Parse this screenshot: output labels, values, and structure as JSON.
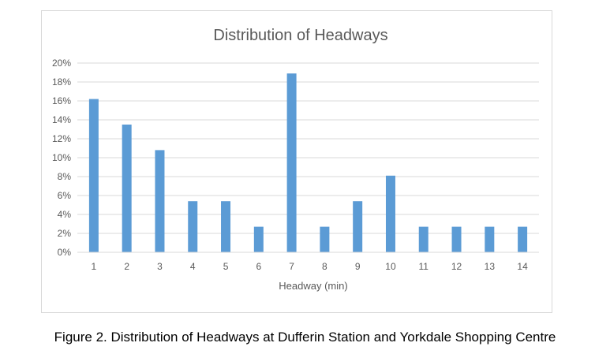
{
  "caption": "Figure 2. Distribution of Headways at Dufferin Station and Yorkdale Shopping Centre",
  "chart_data": {
    "type": "bar",
    "title": "Distribution of Headways",
    "xlabel": "Headway (min)",
    "ylabel": "",
    "categories": [
      "1",
      "2",
      "3",
      "4",
      "5",
      "6",
      "7",
      "8",
      "9",
      "10",
      "11",
      "12",
      "13",
      "14"
    ],
    "values": [
      16.2,
      13.5,
      10.8,
      5.4,
      5.4,
      2.7,
      18.9,
      2.7,
      5.4,
      8.1,
      2.7,
      2.7,
      2.7,
      2.7
    ],
    "ylim": [
      0,
      20
    ],
    "yticks": [
      "0%",
      "2%",
      "4%",
      "6%",
      "8%",
      "10%",
      "12%",
      "14%",
      "16%",
      "18%",
      "20%"
    ],
    "y_unit": "%",
    "grid": true,
    "legend": "none",
    "bar_color": "#5b9bd5"
  }
}
